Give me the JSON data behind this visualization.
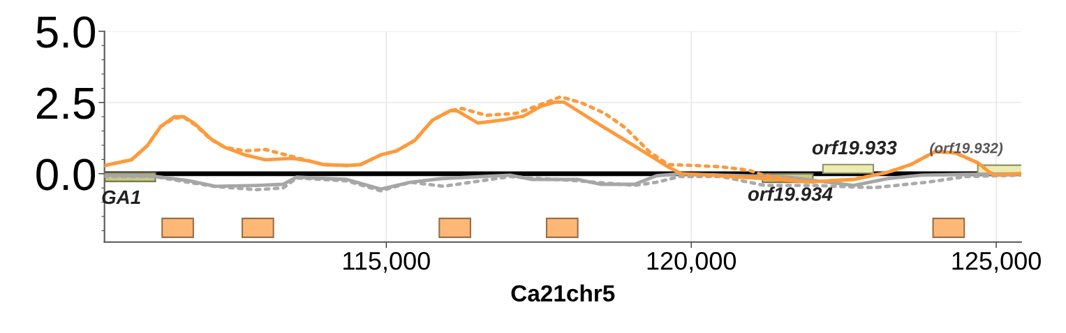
{
  "chart_data": {
    "type": "line",
    "xlabel": "Ca21chr5",
    "xlim": [
      110380,
      125410
    ],
    "xticks": [
      {
        "value": 115000,
        "label": "115,000"
      },
      {
        "value": 120000,
        "label": "120,000"
      },
      {
        "value": 125000,
        "label": "125,000"
      }
    ],
    "ylim": [
      -2.4,
      5.0
    ],
    "yticks": [
      {
        "value": 0,
        "label": "0.0"
      },
      {
        "value": 2.5,
        "label": "2.5"
      },
      {
        "value": 5.0,
        "label": "5.0"
      }
    ],
    "grid": true,
    "ref_lines": [
      {
        "axis": "y",
        "value": 0,
        "color": "#000000"
      }
    ],
    "series": [
      {
        "line_style": "dotted",
        "color": "#aaaaaa",
        "x": [
          110380,
          111200,
          111750,
          112200,
          112870,
          113310,
          113530,
          114350,
          114910,
          115400,
          115940,
          117030,
          118140,
          119070,
          119430,
          119810,
          120500,
          121200,
          122000,
          123000,
          123900,
          124500,
          125410
        ],
        "values": [
          -0.1,
          -0.1,
          -0.3,
          -0.45,
          -0.56,
          -0.5,
          -0.15,
          -0.25,
          -0.6,
          -0.3,
          -0.44,
          -0.1,
          -0.25,
          -0.41,
          -0.3,
          -0.1,
          -0.1,
          -0.41,
          -0.41,
          -0.49,
          -0.29,
          -0.1,
          -0.05
        ]
      },
      {
        "line_style": "solid",
        "color": "#a6a6a6",
        "x": [
          110380,
          111120,
          111750,
          112200,
          112870,
          113310,
          113530,
          114350,
          114910,
          115170,
          115390,
          115910,
          117030,
          117390,
          118140,
          118510,
          119070,
          119430,
          119810,
          120500,
          121500,
          122660,
          123220,
          123780,
          124500,
          125410
        ],
        "values": [
          -0.05,
          -0.07,
          -0.24,
          -0.44,
          -0.41,
          -0.37,
          -0.12,
          -0.2,
          -0.54,
          -0.41,
          -0.3,
          -0.17,
          -0.05,
          -0.2,
          -0.2,
          -0.37,
          -0.37,
          -0.07,
          0.0,
          -0.05,
          -0.1,
          -0.41,
          -0.17,
          -0.05,
          -0.02,
          0.0
        ]
      },
      {
        "line_style": "dotted",
        "color": "#fd9a3c",
        "x": [
          110380,
          110824,
          111080,
          111303,
          111526,
          111682,
          111860,
          112127,
          112350,
          112684,
          113018,
          113463,
          113753,
          113975,
          114354,
          114577,
          114911,
          115167,
          115468,
          115757,
          116058,
          116240,
          116640,
          117130,
          117460,
          117860,
          118200,
          118580,
          118910,
          119310,
          119620,
          120060,
          120500,
          120950,
          121180,
          121930,
          122660,
          123220,
          123600,
          124000,
          124330,
          124710,
          124890,
          125000,
          125410
        ],
        "values": [
          0.29,
          0.49,
          0.98,
          1.66,
          1.95,
          1.98,
          1.72,
          1.2,
          0.93,
          0.8,
          0.85,
          0.6,
          0.44,
          0.32,
          0.29,
          0.32,
          0.66,
          0.8,
          1.17,
          1.88,
          2.22,
          2.29,
          2.05,
          2.12,
          2.37,
          2.7,
          2.49,
          2.12,
          1.63,
          0.78,
          0.32,
          0.29,
          0.24,
          0.12,
          -0.05,
          -0.29,
          -0.2,
          0.05,
          0.32,
          0.78,
          0.73,
          0.37,
          0.05,
          -0.05,
          0.0
        ]
      },
      {
        "line_style": "solid",
        "color": "#fd9a3c",
        "x": [
          110380,
          110824,
          111080,
          111303,
          111526,
          111682,
          111860,
          112127,
          112350,
          112684,
          113018,
          113463,
          113753,
          113975,
          114354,
          114577,
          114911,
          115167,
          115468,
          115757,
          116058,
          116169,
          116503,
          116949,
          117249,
          117539,
          117762,
          117918,
          118508,
          119065,
          119621,
          119844,
          120290,
          121180,
          121927,
          122662,
          123218,
          123597,
          123998,
          124332,
          124711,
          124889,
          125000,
          125410
        ],
        "values": [
          0.29,
          0.49,
          0.98,
          1.66,
          2.0,
          2.0,
          1.76,
          1.22,
          0.93,
          0.66,
          0.49,
          0.54,
          0.44,
          0.32,
          0.29,
          0.32,
          0.66,
          0.8,
          1.17,
          1.88,
          2.22,
          2.2,
          1.78,
          1.9,
          2.02,
          2.37,
          2.51,
          2.51,
          1.71,
          0.98,
          0.24,
          0.0,
          -0.05,
          -0.17,
          -0.29,
          -0.2,
          0.05,
          0.32,
          0.78,
          0.73,
          0.37,
          0.05,
          -0.05,
          0.0
        ]
      },
      {
        "type": "bar",
        "color": "#c8c880",
        "x": [
          110802,
          121581
        ],
        "base": [
          -0.27,
          -0.3
        ],
        "values": [
          0.3,
          0.3
        ]
      },
      {
        "type": "bar",
        "color": "#ececb0",
        "x": [
          122572,
          125111
        ],
        "base": [
          0.02,
          0.0
        ],
        "values": [
          0.3,
          0.3
        ]
      },
      {
        "type": "bar",
        "color": "#fdb877",
        "x": [
          111581,
          112895,
          116125,
          117884,
          124220
        ],
        "base": [
          -2.23,
          -2.23,
          -2.23,
          -2.23,
          -2.23
        ],
        "values": [
          0.66,
          0.66,
          0.66,
          0.66,
          0.66
        ]
      }
    ],
    "annotations": [
      "GA1",
      "orf19.934",
      "orf19.933",
      "(orf19.932)"
    ]
  }
}
